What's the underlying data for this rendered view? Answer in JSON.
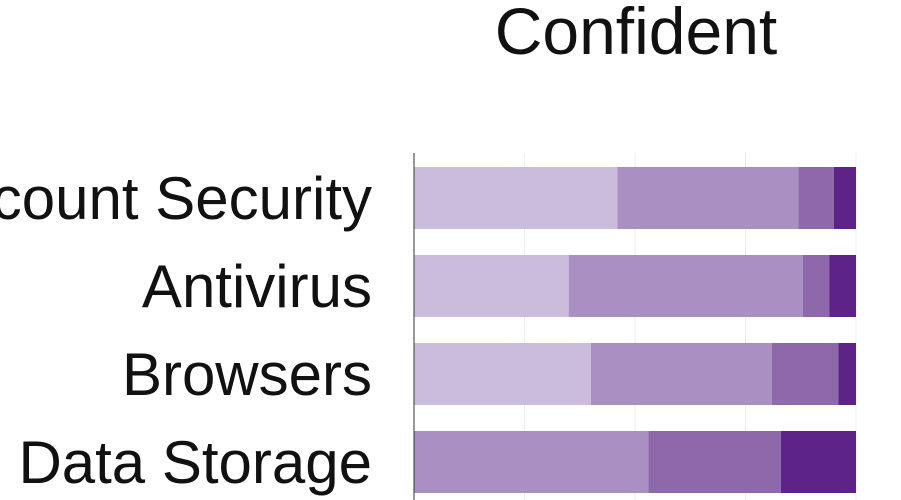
{
  "chart_data": {
    "type": "bar",
    "orientation": "horizontal",
    "stacked": true,
    "title": "Confident",
    "categories": [
      "Account Security",
      "Antivirus",
      "Browsers",
      "Data Storage"
    ],
    "series": [
      {
        "color": "#cbbcdb",
        "values": [
          46,
          35,
          40,
          0
        ]
      },
      {
        "color": "#aa90c2",
        "values": [
          41,
          53,
          41,
          53
        ]
      },
      {
        "color": "#8d68ab",
        "values": [
          8,
          6,
          15,
          30
        ]
      },
      {
        "color": "#5e2387",
        "values": [
          5,
          6,
          4,
          17
        ]
      }
    ],
    "xlim": [
      0,
      100
    ],
    "grid": true,
    "legend": "none"
  }
}
